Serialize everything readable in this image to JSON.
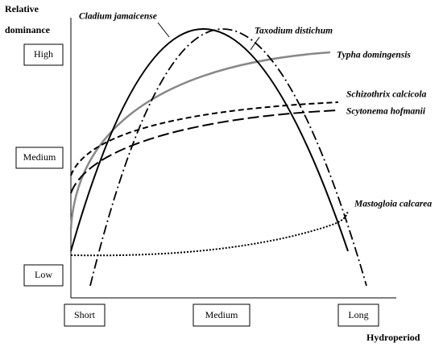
{
  "axis": {
    "y_title_1": "Relative",
    "y_title_2": "dominance",
    "x_title": "Hydroperiod",
    "y_levels": [
      "High",
      "Medium",
      "Low"
    ],
    "x_levels": [
      "Short",
      "Medium",
      "Long"
    ]
  },
  "species": [
    "Cladium jamaicense",
    "Taxodium distichum",
    "Typha domingensis",
    "Schizothrix calcicola",
    "Scytonema hofmanii",
    "Mastogloia calcarea"
  ]
}
